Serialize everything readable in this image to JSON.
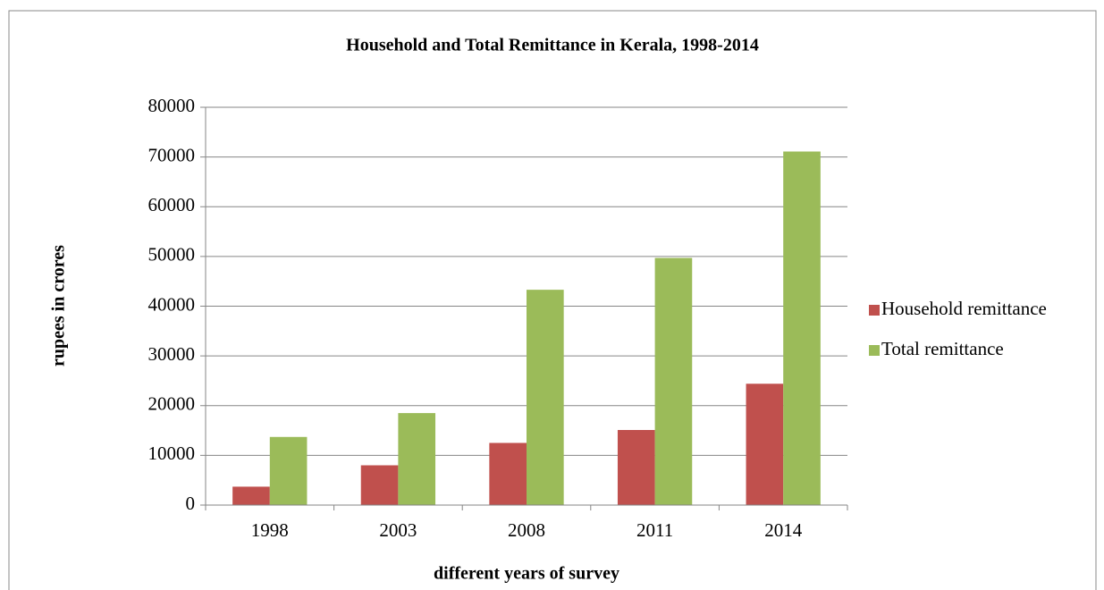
{
  "chart_data": {
    "type": "bar",
    "title": "Household and Total Remittance in Kerala, 1998-2014",
    "x_label": "different years of survey",
    "y_label": "rupees in crores",
    "categories": [
      "1998",
      "2003",
      "2008",
      "2011",
      "2014"
    ],
    "series": [
      {
        "name": "Household remittance",
        "color": "#c0504d",
        "values": [
          3700,
          8000,
          12500,
          15100,
          24400
        ]
      },
      {
        "name": "Total remittance",
        "color": "#9bbb59",
        "values": [
          13700,
          18500,
          43300,
          49700,
          71100
        ]
      }
    ],
    "ylim": [
      0,
      80000
    ],
    "yticks": [
      0,
      10000,
      20000,
      30000,
      40000,
      50000,
      60000,
      70000,
      80000
    ],
    "grid": true,
    "legend": "right"
  }
}
